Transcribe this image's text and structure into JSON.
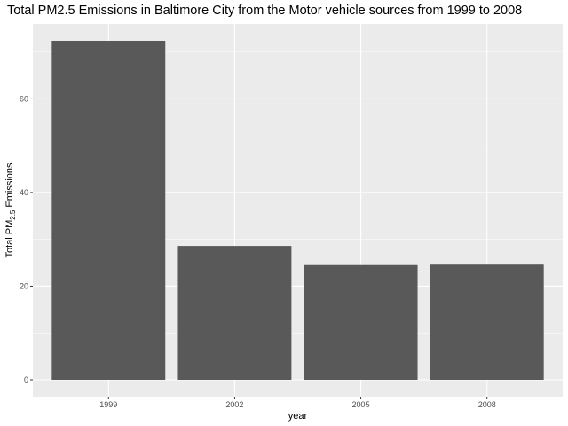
{
  "chart_data": {
    "type": "bar",
    "title": "Total PM2.5 Emissions in Baltimore City from the Motor vehicle sources from 1999 to 2008",
    "xlabel": "year",
    "ylabel": {
      "prefix": "Total PM",
      "subscript": "2.5",
      "suffix": " Emissions"
    },
    "categories": [
      "1999",
      "2002",
      "2005",
      "2008"
    ],
    "values": [
      72.4,
      28.6,
      24.5,
      24.6
    ],
    "ylim": [
      -3.6,
      76.0
    ],
    "yticks": [
      0,
      20,
      40,
      60
    ],
    "ytick_labels": [
      "0",
      "20",
      "40",
      "60"
    ],
    "grid": true,
    "legend": "none",
    "colors": {
      "panel": "#ebebeb",
      "grid_major": "#ffffff",
      "bar": "#595959",
      "tick": "#333333"
    }
  }
}
